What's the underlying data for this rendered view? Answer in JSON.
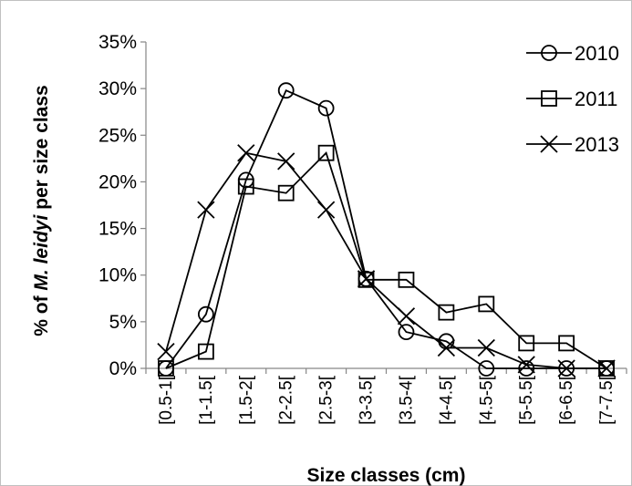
{
  "chart_data": {
    "type": "line",
    "title": "",
    "xlabel": "Size classes (cm)",
    "ylabel_parts": [
      "% of ",
      "M. leidyi",
      " per size class"
    ],
    "categories": [
      "[0.5-1[",
      "[1-1.5[",
      "[1.5-2[",
      "[2-2.5[",
      "[2.5-3[",
      "[3-3.5[",
      "[3.5-4[",
      "[4-4.5[",
      "[4.5-5[",
      "[5-5.5[",
      "[6-6.5[",
      "[7-7.5["
    ],
    "ylim": [
      0,
      35
    ],
    "yticks": [
      0,
      5,
      10,
      15,
      20,
      25,
      30,
      35
    ],
    "ytick_labels": [
      "0%",
      "5%",
      "10%",
      "15%",
      "20%",
      "25%",
      "30%",
      "35%"
    ],
    "grid": false,
    "legend_position": "top-right",
    "series": [
      {
        "name": "2010",
        "marker": "circle",
        "color": "#000000",
        "values": [
          0,
          5.8,
          20.2,
          29.8,
          27.9,
          9.6,
          3.9,
          2.9,
          0,
          0,
          0,
          0
        ]
      },
      {
        "name": "2011",
        "marker": "square",
        "color": "#000000",
        "values": [
          0,
          1.8,
          19.5,
          18.8,
          23.1,
          9.5,
          9.5,
          6.0,
          6.9,
          2.7,
          2.7,
          0
        ]
      },
      {
        "name": "2013",
        "marker": "x",
        "color": "#000000",
        "values": [
          1.8,
          17.0,
          23.1,
          22.2,
          17.0,
          9.6,
          5.6,
          2.2,
          2.2,
          0.4,
          0,
          0
        ]
      }
    ]
  }
}
